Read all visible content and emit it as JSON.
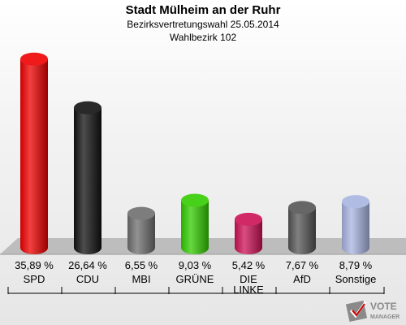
{
  "header": {
    "title": "Stadt Mülheim an der Ruhr",
    "subtitle": "Bezirksvertretungswahl 25.05.2014",
    "district": "Wahlbezirk 102"
  },
  "chart_data": {
    "type": "bar",
    "categories": [
      "SPD",
      "CDU",
      "MBI",
      "GRÜNE",
      "DIE LINKE",
      "AfD",
      "Sonstige"
    ],
    "values": [
      35.89,
      26.64,
      6.55,
      9.03,
      5.42,
      7.67,
      8.79
    ],
    "value_labels": [
      "35,89 %",
      "26,64 %",
      "6,55 %",
      "9,03 %",
      "5,42 %",
      "7,67 %",
      "8,79 %"
    ],
    "colors": [
      "#ee0000",
      "#111111",
      "#6e6e6e",
      "#33cc00",
      "#cc1155",
      "#555555",
      "#a8b4e0"
    ],
    "ylim": [
      0,
      36
    ],
    "grid": false,
    "legend": "none"
  },
  "logo": {
    "line1": "VOTE",
    "line2": "MANAGER"
  }
}
